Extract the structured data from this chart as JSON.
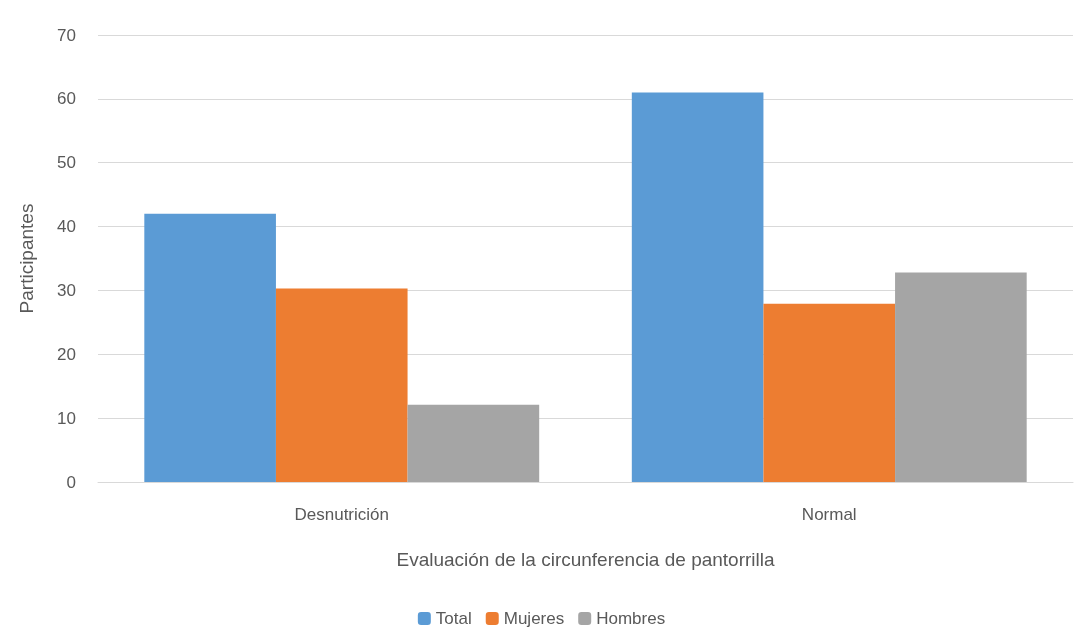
{
  "chart_data": {
    "type": "bar",
    "xlabel": "Evaluación de la circunferencia de pantorrilla",
    "ylabel": "Participantes",
    "categories": [
      "Desnutrición",
      "Normal"
    ],
    "series": [
      {
        "name": "Total",
        "color": "#5b9bd5",
        "values": [
          42,
          61
        ]
      },
      {
        "name": "Mujeres",
        "color": "#ed7d31",
        "values": [
          30.3,
          27.9
        ]
      },
      {
        "name": "Hombres",
        "color": "#a5a5a5",
        "values": [
          12.1,
          32.8
        ]
      }
    ],
    "ylim": [
      0,
      70
    ],
    "yticks": [
      0,
      10,
      20,
      30,
      40,
      50,
      60,
      70
    ],
    "grid": "y",
    "legend": "bottom"
  }
}
